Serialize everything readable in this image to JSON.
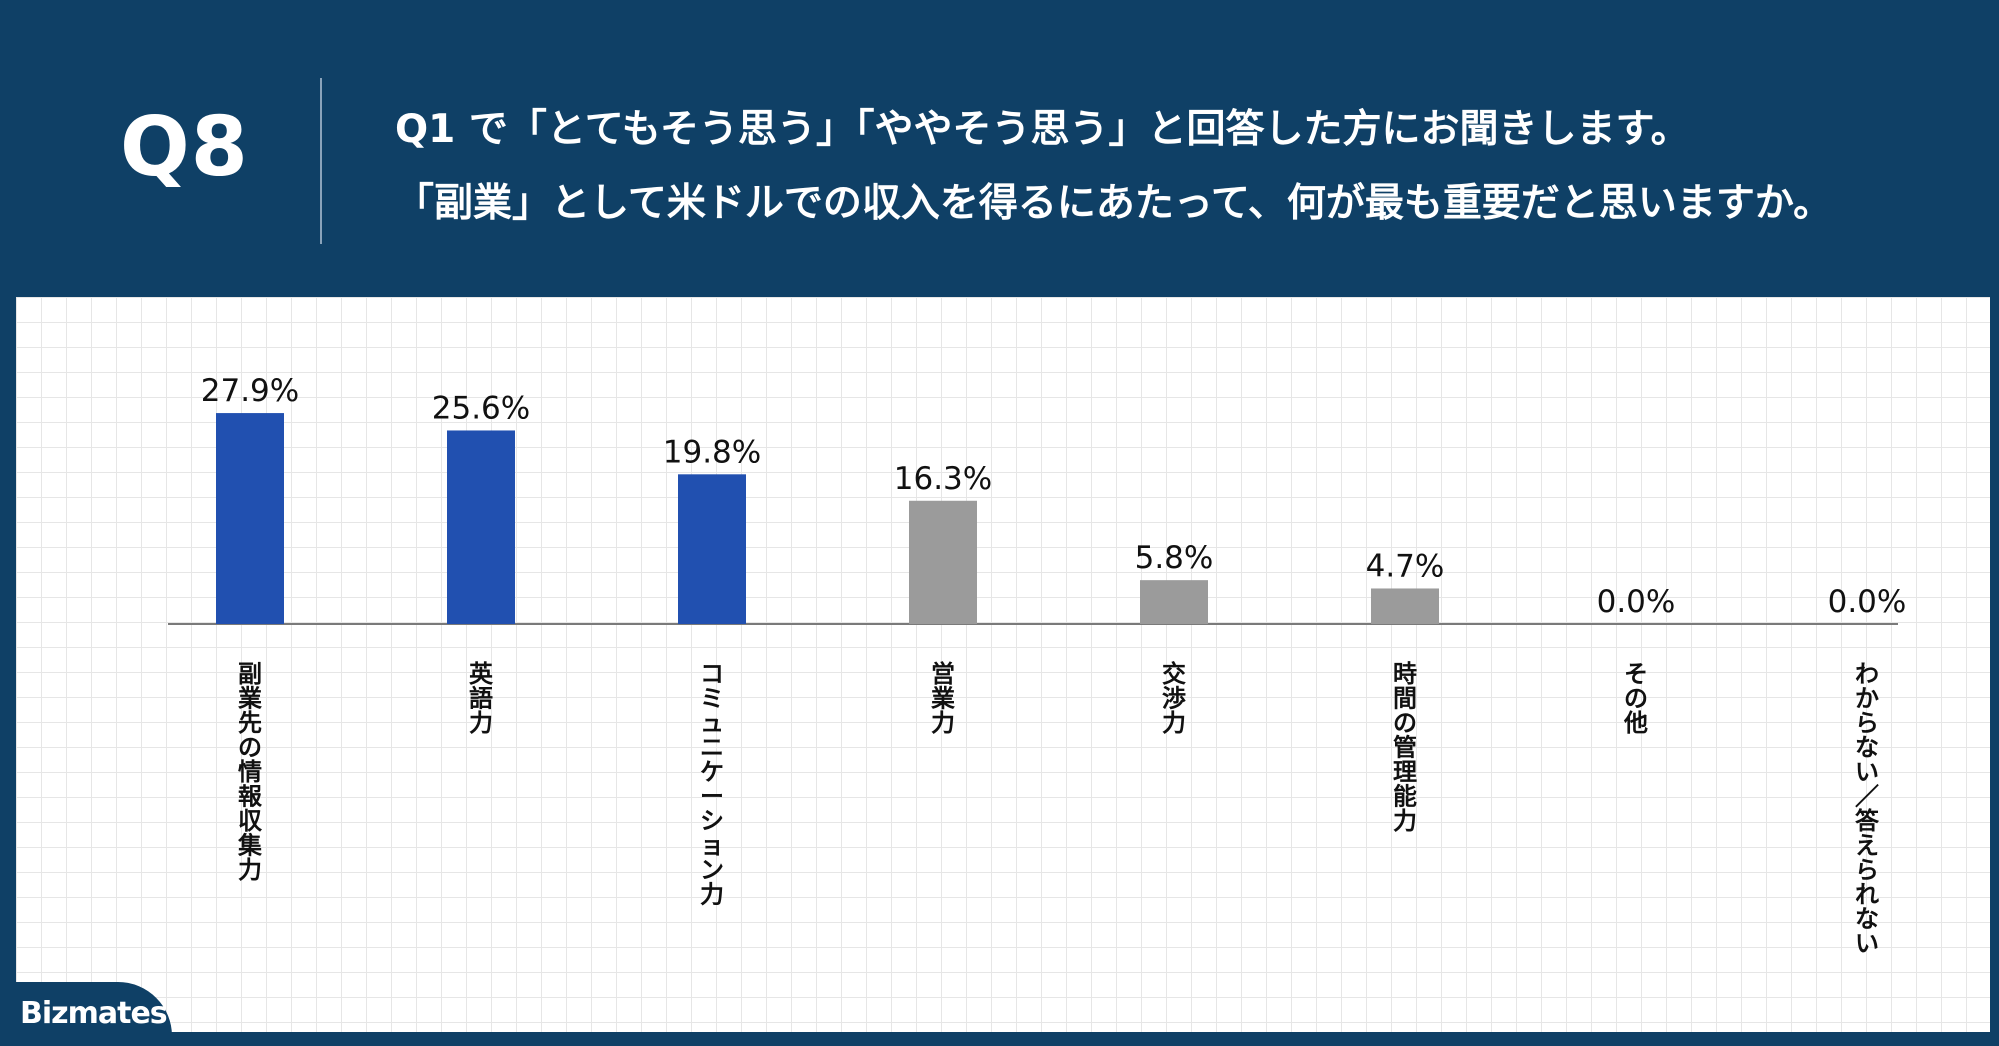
{
  "header": {
    "question_number": "Q8",
    "question_lines": [
      "Q1 で「とてもそう思う」「ややそう思う」と回答した方にお聞きします。",
      "「副業」として米ドルでの収入を得るにあたって、何が最も重要だと思いますか。"
    ]
  },
  "brand": {
    "logo_text": "Bizmates"
  },
  "colors": {
    "background": "#0f4066",
    "highlight_bar": "#2150b0",
    "other_bar": "#9b9b9b",
    "axis": "#7a7a7a"
  },
  "chart_data": {
    "type": "bar",
    "categories": [
      "副業先の情報収集力",
      "英語力",
      "コミュニケーション力",
      "営業力",
      "交渉力",
      "時間の管理能力",
      "その他",
      "わからない／答えられない"
    ],
    "values": [
      27.9,
      25.6,
      19.8,
      16.3,
      5.8,
      4.7,
      0.0,
      0.0
    ],
    "value_labels": [
      "27.9%",
      "25.6%",
      "19.8%",
      "16.3%",
      "5.8%",
      "4.7%",
      "0.0%",
      "0.0%"
    ],
    "highlighted": [
      true,
      true,
      true,
      false,
      false,
      false,
      false,
      false
    ],
    "unit": "%",
    "ylim": [
      0,
      30
    ],
    "grid": true,
    "title": "",
    "xlabel": "",
    "ylabel": ""
  }
}
